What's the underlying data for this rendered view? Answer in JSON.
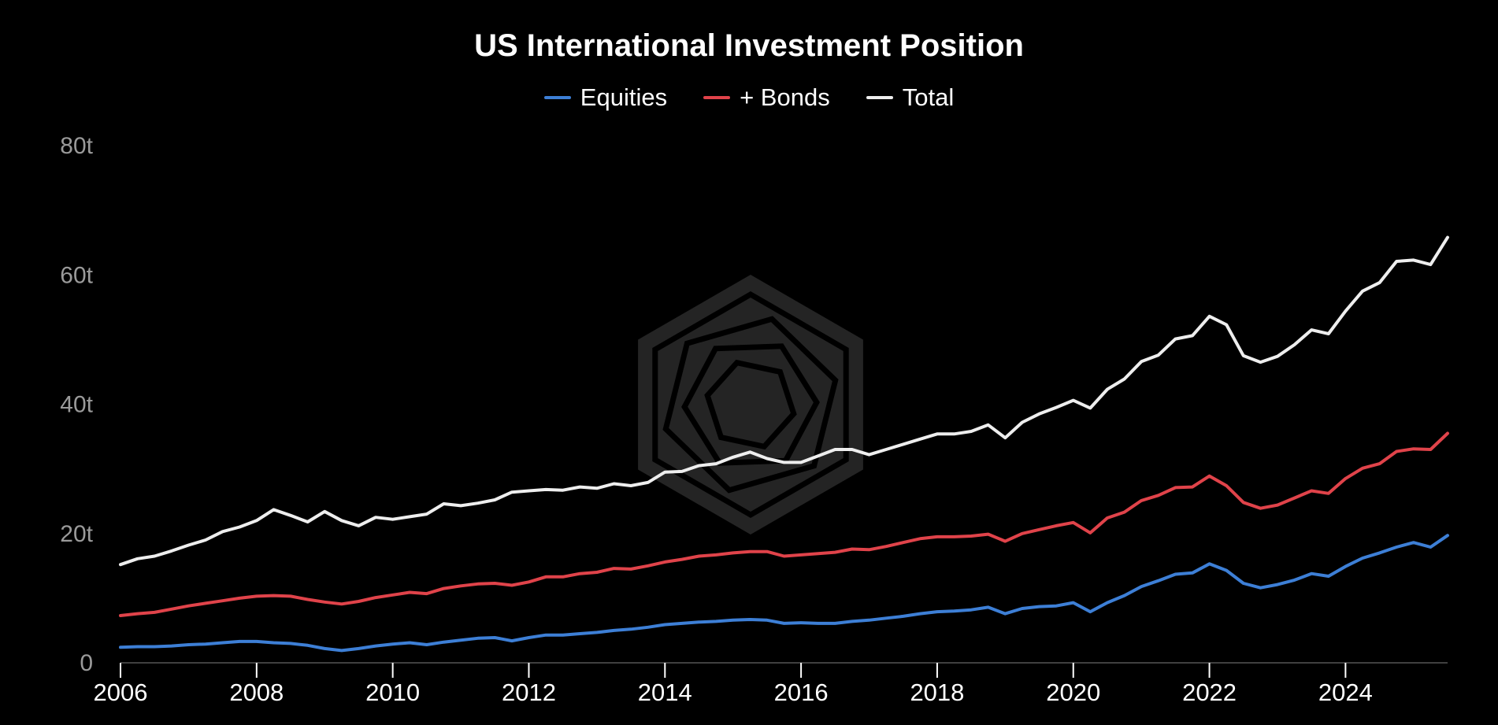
{
  "chart_data": {
    "type": "line",
    "title": "US International Investment Position",
    "xlabel": "",
    "ylabel": "",
    "xlim": [
      2006,
      2025.5
    ],
    "ylim": [
      0,
      80
    ],
    "grid": false,
    "legend_position": "top-center",
    "y_ticks": [
      {
        "value": 0,
        "label": "0"
      },
      {
        "value": 20,
        "label": "20t"
      },
      {
        "value": 40,
        "label": "40t"
      },
      {
        "value": 60,
        "label": "60t"
      },
      {
        "value": 80,
        "label": "80t"
      }
    ],
    "x_ticks": [
      {
        "value": 2006,
        "label": "2006"
      },
      {
        "value": 2008,
        "label": "2008"
      },
      {
        "value": 2010,
        "label": "2010"
      },
      {
        "value": 2012,
        "label": "2012"
      },
      {
        "value": 2014,
        "label": "2014"
      },
      {
        "value": 2016,
        "label": "2016"
      },
      {
        "value": 2018,
        "label": "2018"
      },
      {
        "value": 2020,
        "label": "2020"
      },
      {
        "value": 2022,
        "label": "2022"
      },
      {
        "value": 2024,
        "label": "2024"
      }
    ],
    "series": [
      {
        "name": "Equities",
        "color": "#3d7fd6",
        "points": [
          [
            2006.0,
            2.4
          ],
          [
            2006.25,
            2.5
          ],
          [
            2006.5,
            2.5
          ],
          [
            2006.75,
            2.6
          ],
          [
            2007.0,
            2.8
          ],
          [
            2007.25,
            2.9
          ],
          [
            2007.5,
            3.1
          ],
          [
            2007.75,
            3.3
          ],
          [
            2008.0,
            3.3
          ],
          [
            2008.25,
            3.1
          ],
          [
            2008.5,
            3.0
          ],
          [
            2008.75,
            2.7
          ],
          [
            2009.0,
            2.2
          ],
          [
            2009.25,
            1.9
          ],
          [
            2009.5,
            2.2
          ],
          [
            2009.75,
            2.6
          ],
          [
            2010.0,
            2.9
          ],
          [
            2010.25,
            3.1
          ],
          [
            2010.5,
            2.8
          ],
          [
            2010.75,
            3.2
          ],
          [
            2011.0,
            3.5
          ],
          [
            2011.25,
            3.8
          ],
          [
            2011.5,
            3.9
          ],
          [
            2011.75,
            3.4
          ],
          [
            2012.0,
            3.9
          ],
          [
            2012.25,
            4.3
          ],
          [
            2012.5,
            4.3
          ],
          [
            2012.75,
            4.5
          ],
          [
            2013.0,
            4.7
          ],
          [
            2013.25,
            5.0
          ],
          [
            2013.5,
            5.2
          ],
          [
            2013.75,
            5.5
          ],
          [
            2014.0,
            5.9
          ],
          [
            2014.25,
            6.1
          ],
          [
            2014.5,
            6.3
          ],
          [
            2014.75,
            6.4
          ],
          [
            2015.0,
            6.6
          ],
          [
            2015.25,
            6.7
          ],
          [
            2015.5,
            6.6
          ],
          [
            2015.75,
            6.1
          ],
          [
            2016.0,
            6.2
          ],
          [
            2016.25,
            6.1
          ],
          [
            2016.5,
            6.1
          ],
          [
            2016.75,
            6.4
          ],
          [
            2017.0,
            6.6
          ],
          [
            2017.25,
            6.9
          ],
          [
            2017.5,
            7.2
          ],
          [
            2017.75,
            7.6
          ],
          [
            2018.0,
            7.9
          ],
          [
            2018.25,
            8.0
          ],
          [
            2018.5,
            8.2
          ],
          [
            2018.75,
            8.6
          ],
          [
            2019.0,
            7.6
          ],
          [
            2019.25,
            8.4
          ],
          [
            2019.5,
            8.7
          ],
          [
            2019.75,
            8.8
          ],
          [
            2020.0,
            9.3
          ],
          [
            2020.25,
            7.9
          ],
          [
            2020.5,
            9.3
          ],
          [
            2020.75,
            10.4
          ],
          [
            2021.0,
            11.8
          ],
          [
            2021.25,
            12.7
          ],
          [
            2021.5,
            13.7
          ],
          [
            2021.75,
            13.9
          ],
          [
            2022.0,
            15.3
          ],
          [
            2022.25,
            14.3
          ],
          [
            2022.5,
            12.3
          ],
          [
            2022.75,
            11.6
          ],
          [
            2023.0,
            12.1
          ],
          [
            2023.25,
            12.8
          ],
          [
            2023.5,
            13.8
          ],
          [
            2023.75,
            13.4
          ],
          [
            2024.0,
            14.9
          ],
          [
            2024.25,
            16.2
          ],
          [
            2024.5,
            17.0
          ],
          [
            2024.75,
            17.9
          ],
          [
            2025.0,
            18.6
          ],
          [
            2025.25,
            17.9
          ],
          [
            2025.5,
            19.7
          ]
        ]
      },
      {
        "name": "+ Bonds",
        "color": "#e0434a",
        "points": [
          [
            2006.0,
            7.3
          ],
          [
            2006.25,
            7.6
          ],
          [
            2006.5,
            7.8
          ],
          [
            2006.75,
            8.3
          ],
          [
            2007.0,
            8.8
          ],
          [
            2007.25,
            9.2
          ],
          [
            2007.5,
            9.6
          ],
          [
            2007.75,
            10.0
          ],
          [
            2008.0,
            10.3
          ],
          [
            2008.25,
            10.4
          ],
          [
            2008.5,
            10.3
          ],
          [
            2008.75,
            9.8
          ],
          [
            2009.0,
            9.4
          ],
          [
            2009.25,
            9.1
          ],
          [
            2009.5,
            9.5
          ],
          [
            2009.75,
            10.1
          ],
          [
            2010.0,
            10.5
          ],
          [
            2010.25,
            10.9
          ],
          [
            2010.5,
            10.7
          ],
          [
            2010.75,
            11.5
          ],
          [
            2011.0,
            11.9
          ],
          [
            2011.25,
            12.2
          ],
          [
            2011.5,
            12.3
          ],
          [
            2011.75,
            12.0
          ],
          [
            2012.0,
            12.5
          ],
          [
            2012.25,
            13.3
          ],
          [
            2012.5,
            13.3
          ],
          [
            2012.75,
            13.8
          ],
          [
            2013.0,
            14.0
          ],
          [
            2013.25,
            14.6
          ],
          [
            2013.5,
            14.5
          ],
          [
            2013.75,
            15.0
          ],
          [
            2014.0,
            15.6
          ],
          [
            2014.25,
            16.0
          ],
          [
            2014.5,
            16.5
          ],
          [
            2014.75,
            16.7
          ],
          [
            2015.0,
            17.0
          ],
          [
            2015.25,
            17.2
          ],
          [
            2015.5,
            17.2
          ],
          [
            2015.75,
            16.5
          ],
          [
            2016.0,
            16.7
          ],
          [
            2016.25,
            16.9
          ],
          [
            2016.5,
            17.1
          ],
          [
            2016.75,
            17.6
          ],
          [
            2017.0,
            17.5
          ],
          [
            2017.25,
            18.0
          ],
          [
            2017.5,
            18.6
          ],
          [
            2017.75,
            19.2
          ],
          [
            2018.0,
            19.5
          ],
          [
            2018.25,
            19.5
          ],
          [
            2018.5,
            19.6
          ],
          [
            2018.75,
            19.9
          ],
          [
            2019.0,
            18.8
          ],
          [
            2019.25,
            20.0
          ],
          [
            2019.5,
            20.6
          ],
          [
            2019.75,
            21.2
          ],
          [
            2020.0,
            21.7
          ],
          [
            2020.25,
            20.1
          ],
          [
            2020.5,
            22.4
          ],
          [
            2020.75,
            23.3
          ],
          [
            2021.0,
            25.1
          ],
          [
            2021.25,
            25.9
          ],
          [
            2021.5,
            27.1
          ],
          [
            2021.75,
            27.2
          ],
          [
            2022.0,
            28.9
          ],
          [
            2022.25,
            27.4
          ],
          [
            2022.5,
            24.8
          ],
          [
            2022.75,
            23.9
          ],
          [
            2023.0,
            24.4
          ],
          [
            2023.25,
            25.5
          ],
          [
            2023.5,
            26.6
          ],
          [
            2023.75,
            26.2
          ],
          [
            2024.0,
            28.5
          ],
          [
            2024.25,
            30.1
          ],
          [
            2024.5,
            30.8
          ],
          [
            2024.75,
            32.7
          ],
          [
            2025.0,
            33.1
          ],
          [
            2025.25,
            33.0
          ],
          [
            2025.5,
            35.5
          ]
        ]
      },
      {
        "name": "Total",
        "color": "#eeeeee",
        "points": [
          [
            2006.0,
            15.2
          ],
          [
            2006.25,
            16.1
          ],
          [
            2006.5,
            16.5
          ],
          [
            2006.75,
            17.3
          ],
          [
            2007.0,
            18.2
          ],
          [
            2007.25,
            19.0
          ],
          [
            2007.5,
            20.3
          ],
          [
            2007.75,
            21.0
          ],
          [
            2008.0,
            22.0
          ],
          [
            2008.25,
            23.7
          ],
          [
            2008.5,
            22.8
          ],
          [
            2008.75,
            21.8
          ],
          [
            2009.0,
            23.4
          ],
          [
            2009.25,
            22.0
          ],
          [
            2009.5,
            21.2
          ],
          [
            2009.75,
            22.5
          ],
          [
            2010.0,
            22.2
          ],
          [
            2010.25,
            22.6
          ],
          [
            2010.5,
            23.0
          ],
          [
            2010.75,
            24.6
          ],
          [
            2011.0,
            24.3
          ],
          [
            2011.25,
            24.7
          ],
          [
            2011.5,
            25.2
          ],
          [
            2011.75,
            26.4
          ],
          [
            2012.0,
            26.6
          ],
          [
            2012.25,
            26.8
          ],
          [
            2012.5,
            26.7
          ],
          [
            2012.75,
            27.2
          ],
          [
            2013.0,
            27.0
          ],
          [
            2013.25,
            27.7
          ],
          [
            2013.5,
            27.4
          ],
          [
            2013.75,
            27.9
          ],
          [
            2014.0,
            29.5
          ],
          [
            2014.25,
            29.6
          ],
          [
            2014.5,
            30.5
          ],
          [
            2014.75,
            30.8
          ],
          [
            2015.0,
            31.8
          ],
          [
            2015.25,
            32.6
          ],
          [
            2015.5,
            31.6
          ],
          [
            2015.75,
            31.0
          ],
          [
            2016.0,
            31.0
          ],
          [
            2016.25,
            32.0
          ],
          [
            2016.5,
            33.0
          ],
          [
            2016.75,
            33.0
          ],
          [
            2017.0,
            32.2
          ],
          [
            2017.25,
            33.0
          ],
          [
            2017.5,
            33.8
          ],
          [
            2017.75,
            34.6
          ],
          [
            2018.0,
            35.4
          ],
          [
            2018.25,
            35.4
          ],
          [
            2018.5,
            35.8
          ],
          [
            2018.75,
            36.8
          ],
          [
            2019.0,
            34.8
          ],
          [
            2019.25,
            37.2
          ],
          [
            2019.5,
            38.5
          ],
          [
            2019.75,
            39.5
          ],
          [
            2020.0,
            40.6
          ],
          [
            2020.25,
            39.4
          ],
          [
            2020.5,
            42.3
          ],
          [
            2020.75,
            43.9
          ],
          [
            2021.0,
            46.6
          ],
          [
            2021.25,
            47.6
          ],
          [
            2021.5,
            50.1
          ],
          [
            2021.75,
            50.6
          ],
          [
            2022.0,
            53.6
          ],
          [
            2022.25,
            52.3
          ],
          [
            2022.5,
            47.5
          ],
          [
            2022.75,
            46.5
          ],
          [
            2023.0,
            47.4
          ],
          [
            2023.25,
            49.2
          ],
          [
            2023.5,
            51.5
          ],
          [
            2023.75,
            50.9
          ],
          [
            2024.0,
            54.4
          ],
          [
            2024.25,
            57.5
          ],
          [
            2024.5,
            58.8
          ],
          [
            2024.75,
            62.1
          ],
          [
            2025.0,
            62.3
          ],
          [
            2025.25,
            61.6
          ],
          [
            2025.5,
            65.8
          ]
        ]
      }
    ]
  }
}
